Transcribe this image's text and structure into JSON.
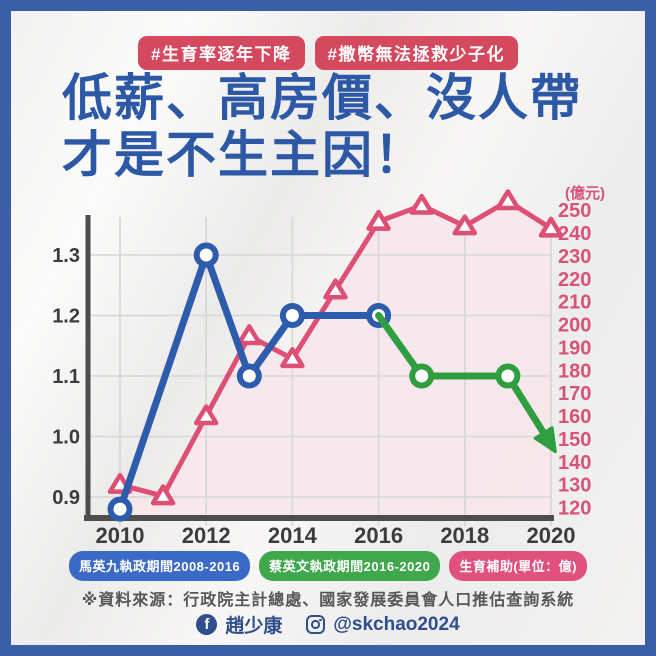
{
  "colors": {
    "frame_blue": "#3b5ea6",
    "background": "#f1f0ef",
    "badge_pink": "#d5495f",
    "title_blue": "#2c58a6",
    "line_blue": "#2e5cac",
    "line_green": "#2f9e41",
    "line_pink": "#de4f75",
    "area_pink": "#f5e7eb",
    "grid": "#d8d6d4",
    "axis": "#4d4d4d",
    "axis_label": "#3c3c3c",
    "right_axis_pink": "#d75379",
    "legend_blue": "#3a6ac6",
    "legend_green": "#3fa74c",
    "legend_pink": "#e0517e",
    "source_gray": "#575757",
    "footer_blue": "#2e4e8c"
  },
  "header": {
    "hashtag1": "#生育率逐年下降",
    "hashtag2": "#撒幣無法拯救少子化",
    "title_line1": "低薪、高房價、沒人帶",
    "title_line2": "才是不生主因！"
  },
  "chart_data": {
    "type": "line",
    "grid": true,
    "x_ticks": [
      2010,
      2012,
      2014,
      2016,
      2018,
      2020
    ],
    "left_axis": {
      "ticks": [
        "0.9",
        "1.0",
        "1.1",
        "1.2",
        "1.3"
      ],
      "range": [
        0.87,
        1.36
      ]
    },
    "right_axis": {
      "label": "(億元)",
      "ticks": [
        120,
        130,
        140,
        150,
        160,
        170,
        180,
        190,
        200,
        210,
        220,
        230,
        240,
        250
      ],
      "range": [
        115,
        253
      ]
    },
    "series": [
      {
        "name": "生育補助(單位：億)",
        "axis": "right",
        "marker": "triangle",
        "area": true,
        "x": [
          2010,
          2011,
          2012,
          2013,
          2014,
          2015,
          2016,
          2017,
          2018,
          2019,
          2020
        ],
        "values": [
          130,
          125,
          160,
          195,
          185,
          215,
          245,
          252,
          243,
          254,
          242
        ]
      },
      {
        "name": "馬英九執政期間2008-2016",
        "axis": "left",
        "marker": "circle",
        "x": [
          2010,
          2012,
          2013,
          2014,
          2016
        ],
        "values": [
          0.88,
          1.3,
          1.1,
          1.2,
          1.2
        ]
      },
      {
        "name": "蔡英文執政期間2016-2020",
        "axis": "left",
        "marker": "circle",
        "marker_first": false,
        "x": [
          2016,
          2017,
          2019
        ],
        "values": [
          1.2,
          1.1,
          1.1
        ],
        "arrow_to": {
          "x": 2020.1,
          "value": 0.975
        }
      }
    ]
  },
  "legend": [
    {
      "label": "馬英九執政期間2008-2016",
      "color": "#3a6ac6"
    },
    {
      "label": "蔡英文執政期間2016-2020",
      "color": "#3fa74c"
    },
    {
      "label": "生育補助(單位：億)",
      "color": "#e0517e"
    }
  ],
  "source_note": "※資料來源：行政院主計總處、國家發展委員會人口推估查詢系統",
  "footer": {
    "facebook_icon_glyph": "f",
    "facebook_name": "趙少康",
    "instagram_handle": "@skchao2024"
  }
}
